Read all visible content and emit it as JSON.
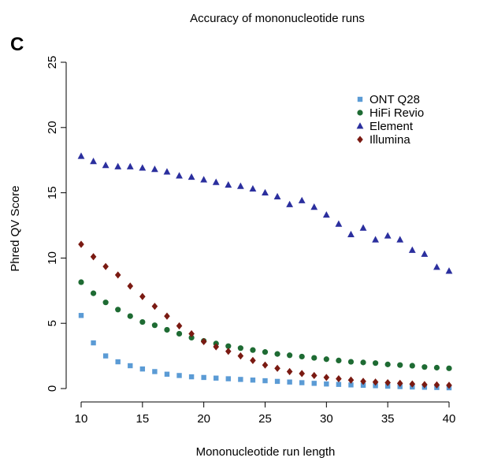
{
  "panel_label": "C",
  "chart_data": {
    "type": "scatter",
    "title": "Accuracy of mononucleotide runs",
    "xlabel": "Mononucleotide run length",
    "ylabel": "Phred QV Score",
    "xlim": [
      10,
      40
    ],
    "ylim": [
      0,
      25
    ],
    "xticks": [
      10,
      15,
      20,
      25,
      30,
      35,
      40
    ],
    "yticks": [
      0,
      5,
      10,
      15,
      20,
      25
    ],
    "grid": false,
    "legend_position": "top-right",
    "x": [
      10,
      11,
      12,
      13,
      14,
      15,
      16,
      17,
      18,
      19,
      20,
      21,
      22,
      23,
      24,
      25,
      26,
      27,
      28,
      29,
      30,
      31,
      32,
      33,
      34,
      35,
      36,
      37,
      38,
      39,
      40
    ],
    "series": [
      {
        "name": "ONT Q28",
        "marker": "square",
        "color": "#5b9bd5",
        "values": [
          5.6,
          3.5,
          2.5,
          2.05,
          1.75,
          1.5,
          1.3,
          1.1,
          1.0,
          0.9,
          0.85,
          0.8,
          0.75,
          0.7,
          0.65,
          0.6,
          0.55,
          0.5,
          0.45,
          0.4,
          0.35,
          0.32,
          0.28,
          0.25,
          0.22,
          0.18,
          0.15,
          0.12,
          0.1,
          0.08,
          0.06
        ]
      },
      {
        "name": "HiFi Revio",
        "marker": "circle",
        "color": "#1e6b33",
        "values": [
          8.15,
          7.3,
          6.6,
          6.05,
          5.55,
          5.1,
          4.85,
          4.5,
          4.2,
          3.9,
          3.65,
          3.45,
          3.25,
          3.1,
          2.95,
          2.8,
          2.65,
          2.55,
          2.45,
          2.35,
          2.25,
          2.15,
          2.05,
          2.0,
          1.95,
          1.85,
          1.8,
          1.75,
          1.65,
          1.6,
          1.55
        ]
      },
      {
        "name": "Element",
        "marker": "triangle",
        "color": "#2b2f9e",
        "values": [
          17.8,
          17.4,
          17.1,
          17.0,
          17.0,
          16.9,
          16.8,
          16.6,
          16.3,
          16.2,
          16.0,
          15.8,
          15.6,
          15.5,
          15.3,
          15.0,
          14.7,
          14.1,
          14.4,
          13.9,
          13.3,
          12.6,
          11.8,
          12.3,
          11.4,
          11.7,
          11.4,
          10.6,
          10.3,
          9.3,
          9.0
        ]
      },
      {
        "name": "Illumina",
        "marker": "diamond",
        "color": "#7a1a12",
        "values": [
          11.05,
          10.1,
          9.35,
          8.7,
          7.85,
          7.05,
          6.3,
          5.55,
          4.8,
          4.2,
          3.6,
          3.2,
          2.85,
          2.5,
          2.15,
          1.8,
          1.55,
          1.3,
          1.15,
          1.0,
          0.85,
          0.75,
          0.65,
          0.55,
          0.5,
          0.45,
          0.4,
          0.35,
          0.3,
          0.28,
          0.25
        ]
      }
    ]
  }
}
